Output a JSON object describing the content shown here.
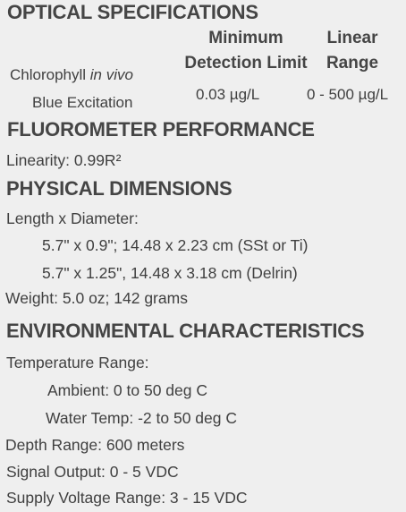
{
  "optical": {
    "heading": "OPTICAL SPECIFICATIONS",
    "col_min_line1": "Minimum",
    "col_min_line2": "Detection Limit",
    "col_lin_line1": "Linear",
    "col_lin_line2": "Range",
    "row_label_prefix": "Chlorophyll",
    "row_label_italic": "in vivo",
    "row_label_line2": "Blue Excitation",
    "min_detection": "0.03 µg/L",
    "linear_range": "0 - 500 µg/L"
  },
  "fluorometer": {
    "heading": "FLUOROMETER PERFORMANCE",
    "linearity": "Linearity: 0.99R²"
  },
  "physical": {
    "heading": "PHYSICAL DIMENSIONS",
    "length_label": "Length x Diameter:",
    "dim1": "5.7\" x 0.9\"; 14.48 x 2.23 cm (SSt or Ti)",
    "dim2": "5.7\" x 1.25\", 14.48 x 3.18 cm (Delrin)",
    "weight": "Weight: 5.0 oz; 142 grams"
  },
  "environmental": {
    "heading": "ENVIRONMENTAL CHARACTERISTICS",
    "temp_label": "Temperature Range:",
    "ambient": "Ambient: 0 to 50 deg C",
    "water": "Water Temp: -2 to 50 deg C",
    "depth": "Depth Range: 600 meters",
    "signal": "Signal Output: 0 - 5 VDC",
    "supply": "Supply Voltage Range: 3 - 15 VDC"
  }
}
